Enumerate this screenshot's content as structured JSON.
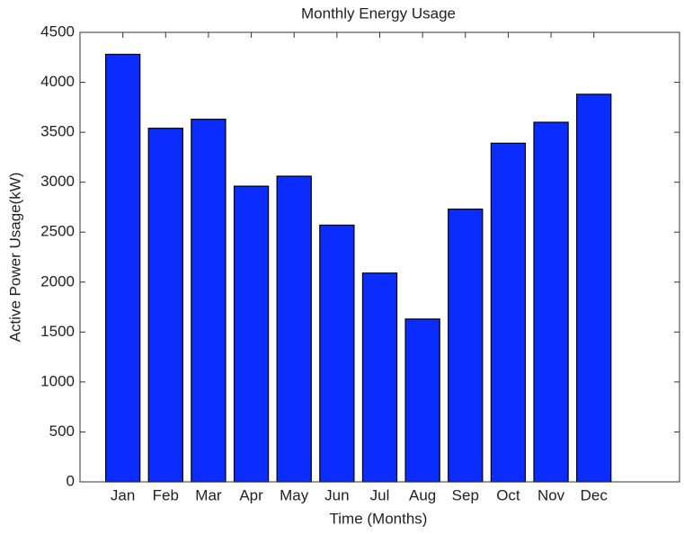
{
  "chart_data": {
    "type": "bar",
    "title": "Monthly Energy Usage",
    "x_label": "Time (Months)",
    "y_label": "Active Power Usage(kW)",
    "categories": [
      "Jan",
      "Feb",
      "Mar",
      "Apr",
      "May",
      "Jun",
      "Jul",
      "Aug",
      "Sep",
      "Oct",
      "Nov",
      "Dec"
    ],
    "values": [
      4280,
      3540,
      3630,
      2960,
      3060,
      2570,
      2090,
      1630,
      2730,
      3390,
      3600,
      3880
    ],
    "color": "#0a2cff",
    "ylim": [
      0,
      4500
    ],
    "yticks": [
      0,
      500,
      1000,
      1500,
      2000,
      2500,
      3000,
      3500,
      4000,
      4500
    ],
    "grid": false
  }
}
